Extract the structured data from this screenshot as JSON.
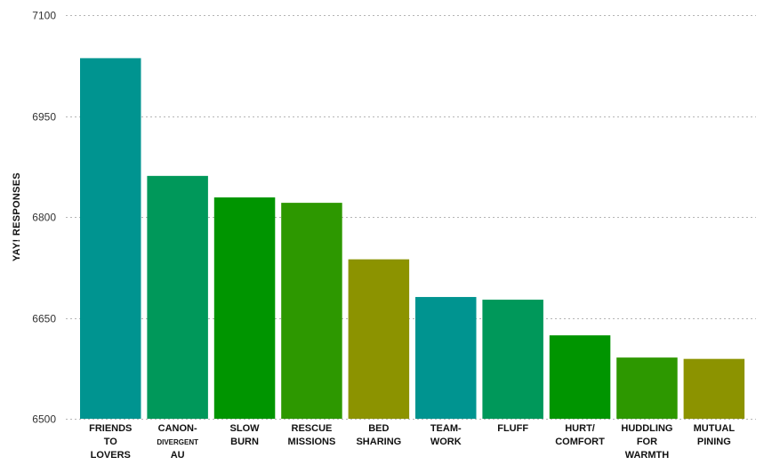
{
  "chart_data": {
    "type": "bar",
    "ylabel": "YAY! RESPONSES",
    "xlabel": "",
    "ylim": [
      6500,
      7100
    ],
    "yticks": [
      6500,
      6650,
      6800,
      6950,
      7100
    ],
    "grid": "horizontal dotted",
    "categories": [
      {
        "lines": [
          "FRIENDS",
          "TO",
          "LOVERS"
        ],
        "small_line": -1
      },
      {
        "lines": [
          "CANON-",
          "DIVERGENT",
          "AU"
        ],
        "small_line": 1
      },
      {
        "lines": [
          "SLOW",
          "BURN"
        ],
        "small_line": -1
      },
      {
        "lines": [
          "RESCUE",
          "MISSIONS"
        ],
        "small_line": -1
      },
      {
        "lines": [
          "BED",
          "SHARING"
        ],
        "small_line": -1
      },
      {
        "lines": [
          "TEAM-",
          "WORK"
        ],
        "small_line": -1
      },
      {
        "lines": [
          "FLUFF"
        ],
        "small_line": -1
      },
      {
        "lines": [
          "HURT/",
          "COMFORT"
        ],
        "small_line": -1
      },
      {
        "lines": [
          "HUDDLING",
          "FOR",
          "WARMTH"
        ],
        "small_line": -1
      },
      {
        "lines": [
          "MUTUAL",
          "PINING"
        ],
        "small_line": -1
      }
    ],
    "values": [
      7036,
      6861,
      6829,
      6821,
      6737,
      6681,
      6677,
      6624,
      6591,
      6589
    ],
    "colors": [
      "#009490",
      "#00985a",
      "#009500",
      "#2d9800",
      "#8c9300",
      "#009490",
      "#00985a",
      "#009500",
      "#2d9800",
      "#8c9300"
    ]
  }
}
